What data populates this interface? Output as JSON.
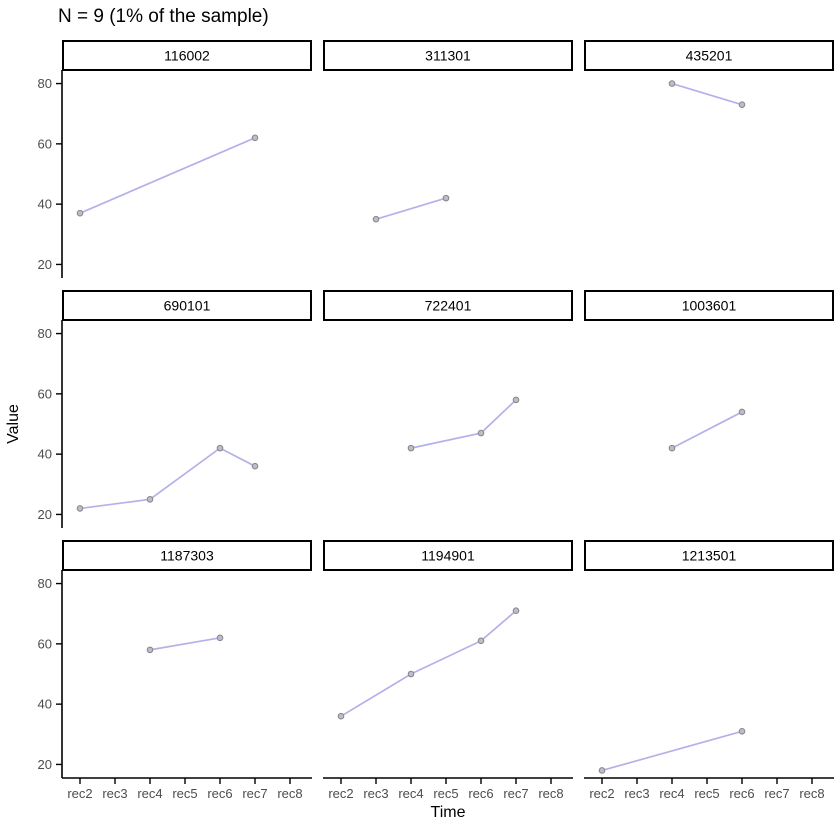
{
  "colors": {
    "line": "#b3b1e9",
    "point_fill": "#bebdc4",
    "point_stroke": "#85848c",
    "axis": "#000000",
    "tick_label": "#4d4d4d",
    "strip_border": "#000000",
    "strip_fill": "#ffffff"
  },
  "chart_data": {
    "type": "line",
    "title": "N = 9 (1% of the sample)",
    "xlabel": "Time",
    "ylabel": "Value",
    "x_categories": [
      "rec2",
      "rec3",
      "rec4",
      "rec5",
      "rec6",
      "rec7",
      "rec8"
    ],
    "y_ticks": [
      20,
      40,
      60,
      80
    ],
    "ylim": [
      15.5,
      84.5
    ],
    "grid": false,
    "legend": false,
    "facet_layout": {
      "rows": 3,
      "cols": 3
    },
    "facets": [
      {
        "label": "116002",
        "points": [
          {
            "x": "rec2",
            "y": 37
          },
          {
            "x": "rec7",
            "y": 62
          }
        ]
      },
      {
        "label": "311301",
        "points": [
          {
            "x": "rec3",
            "y": 35
          },
          {
            "x": "rec5",
            "y": 42
          }
        ]
      },
      {
        "label": "435201",
        "points": [
          {
            "x": "rec4",
            "y": 80
          },
          {
            "x": "rec6",
            "y": 73
          }
        ]
      },
      {
        "label": "690101",
        "points": [
          {
            "x": "rec2",
            "y": 22
          },
          {
            "x": "rec4",
            "y": 25
          },
          {
            "x": "rec6",
            "y": 42
          },
          {
            "x": "rec7",
            "y": 36
          }
        ]
      },
      {
        "label": "722401",
        "points": [
          {
            "x": "rec4",
            "y": 42
          },
          {
            "x": "rec6",
            "y": 47
          },
          {
            "x": "rec7",
            "y": 58
          }
        ]
      },
      {
        "label": "1003601",
        "points": [
          {
            "x": "rec4",
            "y": 42
          },
          {
            "x": "rec6",
            "y": 54
          }
        ]
      },
      {
        "label": "1187303",
        "points": [
          {
            "x": "rec4",
            "y": 58
          },
          {
            "x": "rec6",
            "y": 62
          }
        ]
      },
      {
        "label": "1194901",
        "points": [
          {
            "x": "rec2",
            "y": 36
          },
          {
            "x": "rec4",
            "y": 50
          },
          {
            "x": "rec6",
            "y": 61
          },
          {
            "x": "rec7",
            "y": 71
          }
        ]
      },
      {
        "label": "1213501",
        "points": [
          {
            "x": "rec2",
            "y": 18
          },
          {
            "x": "rec6",
            "y": 31
          }
        ]
      }
    ]
  }
}
